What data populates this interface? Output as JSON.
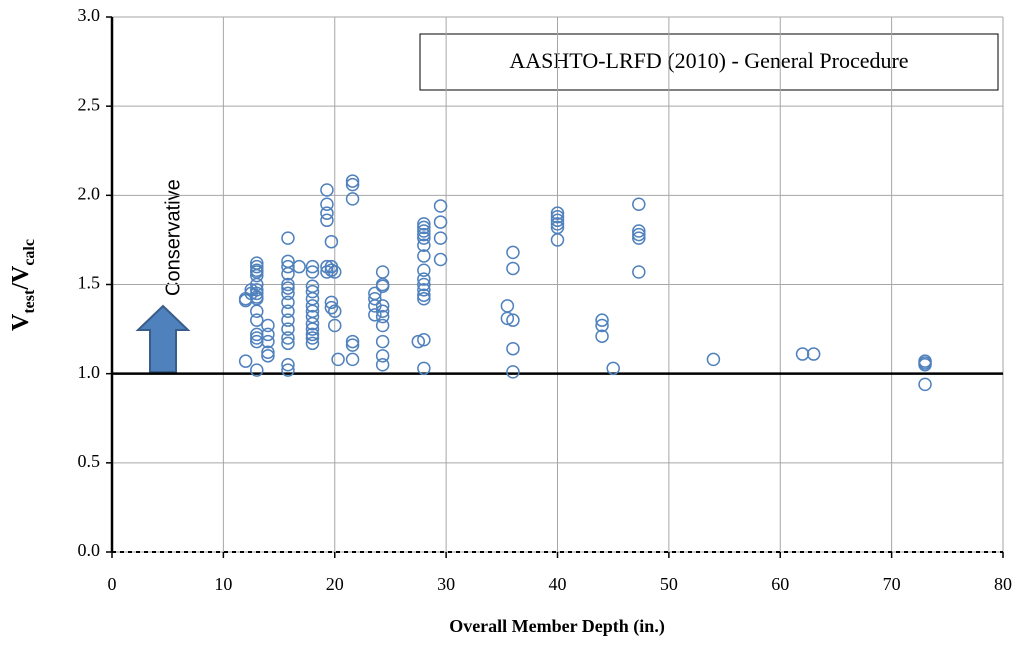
{
  "chart_data": {
    "type": "scatter",
    "annotation": "AASHTO-LRFD (2010)  - General Procedure",
    "arrow_label": "Conservative",
    "xlabel": "Overall Member Depth  (in.)",
    "ylabel_parts": [
      "V",
      "test",
      "/V",
      "calc"
    ],
    "reference_line": 1,
    "color": "#4f81bd",
    "grid": true,
    "xlim": [
      0,
      80
    ],
    "xticks": [
      0,
      10,
      20,
      30,
      40,
      50,
      60,
      70,
      80
    ],
    "ylim": [
      0,
      3
    ],
    "yticks": [
      {
        "value": 0,
        "label": "0.0"
      },
      0.5,
      {
        "value": 1,
        "label": "1.0"
      },
      1.5,
      {
        "value": 2,
        "label": "2.0"
      },
      2.5,
      {
        "value": 3,
        "label": "3.0"
      }
    ],
    "x": [
      12,
      12,
      12,
      12.5,
      12.5,
      13,
      13,
      13,
      13,
      13,
      13,
      13,
      13,
      13,
      13,
      13,
      13,
      13,
      13,
      13,
      13,
      14,
      14,
      14,
      14,
      14,
      15.8,
      15.8,
      15.8,
      15.8,
      15.8,
      15.8,
      15.8,
      15.8,
      15.8,
      15.8,
      15.8,
      15.8,
      15.8,
      15.8,
      15.8,
      16.8,
      18,
      18,
      18,
      18,
      18,
      18,
      18,
      18,
      18,
      18,
      18,
      18,
      18,
      19.3,
      19.3,
      19.3,
      19.3,
      19.3,
      19.3,
      19.7,
      19.7,
      19.7,
      19.7,
      19.7,
      20,
      20,
      20,
      20.3,
      21.6,
      21.6,
      21.6,
      21.6,
      21.6,
      21.6,
      23.6,
      23.6,
      23.6,
      23.6,
      24.3,
      24.3,
      24.3,
      24.3,
      24.3,
      24.3,
      24.3,
      24.3,
      24.3,
      24.3,
      27.5,
      28,
      28,
      28,
      28,
      28,
      28,
      28,
      28,
      28,
      28,
      28,
      28,
      28,
      28,
      28,
      29.5,
      29.5,
      29.5,
      29.5,
      35.5,
      35.5,
      36,
      36,
      36,
      36,
      36,
      40,
      40,
      40,
      40,
      40,
      40,
      44,
      44,
      44,
      45,
      47.3,
      47.3,
      47.3,
      47.3,
      47.3,
      54,
      62,
      63,
      73,
      73,
      73,
      73
    ],
    "values": [
      1.41,
      1.42,
      1.07,
      1.45,
      1.47,
      1.62,
      1.6,
      1.58,
      1.57,
      1.55,
      1.5,
      1.47,
      1.45,
      1.43,
      1.42,
      1.35,
      1.3,
      1.22,
      1.2,
      1.18,
      1.02,
      1.27,
      1.22,
      1.18,
      1.12,
      1.1,
      1.76,
      1.63,
      1.6,
      1.56,
      1.5,
      1.48,
      1.45,
      1.4,
      1.35,
      1.3,
      1.25,
      1.2,
      1.17,
      1.05,
      1.02,
      1.6,
      1.6,
      1.57,
      1.49,
      1.46,
      1.42,
      1.38,
      1.35,
      1.32,
      1.28,
      1.25,
      1.22,
      1.2,
      1.17,
      2.03,
      1.95,
      1.9,
      1.86,
      1.6,
      1.57,
      1.74,
      1.6,
      1.58,
      1.4,
      1.37,
      1.57,
      1.35,
      1.27,
      1.08,
      2.08,
      2.06,
      1.98,
      1.18,
      1.16,
      1.08,
      1.45,
      1.42,
      1.38,
      1.33,
      1.57,
      1.5,
      1.49,
      1.38,
      1.35,
      1.32,
      1.27,
      1.18,
      1.1,
      1.05,
      1.18,
      1.84,
      1.82,
      1.8,
      1.78,
      1.76,
      1.72,
      1.66,
      1.58,
      1.53,
      1.5,
      1.47,
      1.44,
      1.42,
      1.19,
      1.03,
      1.94,
      1.85,
      1.76,
      1.64,
      1.38,
      1.31,
      1.68,
      1.59,
      1.3,
      1.14,
      1.01,
      1.9,
      1.88,
      1.86,
      1.84,
      1.82,
      1.75,
      1.3,
      1.27,
      1.21,
      1.03,
      1.95,
      1.8,
      1.78,
      1.76,
      1.57,
      1.08,
      1.11,
      1.11,
      1.07,
      1.06,
      1.05,
      0.94
    ]
  }
}
